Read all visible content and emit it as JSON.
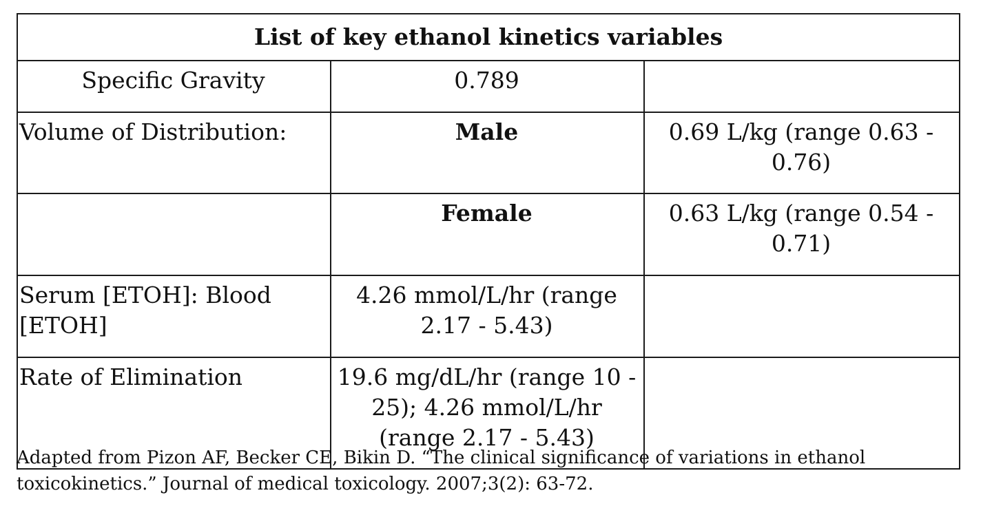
{
  "table": {
    "title": "List of key ethanol kinetics variables",
    "rows": [
      {
        "label": "Specific Gravity",
        "middle": "0.789",
        "right": ""
      },
      {
        "label": "Volume of Distribution:",
        "middle": "Male",
        "right": "0.69 L/kg (range 0.63 - 0.76)"
      },
      {
        "label": "",
        "middle": "Female",
        "right": "0.63 L/kg (range 0.54 - 0.71)"
      },
      {
        "label": "Serum [ETOH]: Blood [ETOH]",
        "middle": "4.26 mmol/L/hr (range 2.17 - 5.43)",
        "right": ""
      },
      {
        "label": "Rate of Elimination",
        "middle": "19.6 mg/dL/hr (range 10 - 25); 4.26 mmol/L/hr (range 2.17 - 5.43)",
        "right": ""
      }
    ]
  },
  "citation": "Adapted from Pizon AF, Becker CE, Bikin D. “The clinical significance of variations in ethanol toxicokinetics.” Journal of medical toxicology. 2007;3(2): 63-72."
}
